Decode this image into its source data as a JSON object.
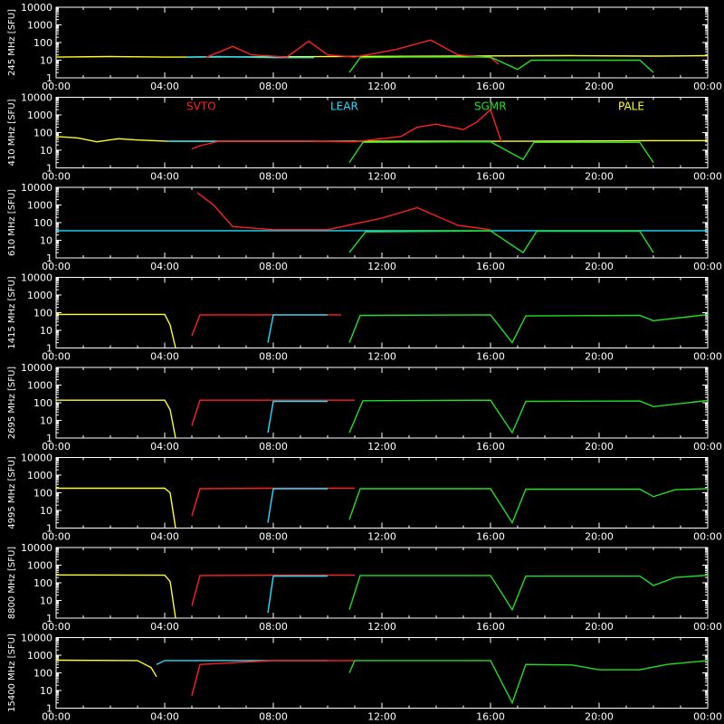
{
  "colors": {
    "SVTO": "#ff2020",
    "LEAR": "#20e0ff",
    "SGMR": "#20e020",
    "PALE": "#ffff20",
    "axis": "#ffffff"
  },
  "chart_data": {
    "type": "line",
    "legend": [
      {
        "name": "SVTO",
        "color": "#ff2020"
      },
      {
        "name": "LEAR",
        "color": "#20e0ff"
      },
      {
        "name": "SGMR",
        "color": "#20e020"
      },
      {
        "name": "PALE",
        "color": "#ffff20"
      }
    ],
    "x_ticks": [
      "00:00",
      "04:00",
      "08:00",
      "12:00",
      "16:00",
      "20:00",
      "00:00"
    ],
    "xlim": [
      0,
      24
    ],
    "y_ticks": [
      "10000",
      "1000",
      "100",
      "10",
      "1"
    ],
    "ylim": [
      1,
      10000
    ],
    "y_scale": "log",
    "panels": [
      {
        "ylabel": "245 MHz [SFU]",
        "series": [
          {
            "station": "PALE",
            "points": [
              [
                0,
                15
              ],
              [
                2,
                16
              ],
              [
                4,
                15
              ],
              [
                4.8,
                15
              ],
              [
                19,
                18
              ],
              [
                22,
                17
              ],
              [
                24,
                18
              ]
            ]
          },
          {
            "station": "LEAR",
            "points": [
              [
                4.8,
                15
              ],
              [
                6,
                16
              ],
              [
                8,
                14
              ],
              [
                9.5,
                14
              ]
            ]
          },
          {
            "station": "SVTO",
            "points": [
              [
                5.5,
                14
              ],
              [
                6.5,
                60
              ],
              [
                7.2,
                20
              ],
              [
                8.5,
                15
              ],
              [
                9.3,
                120
              ],
              [
                10,
                20
              ],
              [
                11,
                15
              ],
              [
                12.5,
                40
              ],
              [
                13.8,
                140
              ],
              [
                14.8,
                20
              ],
              [
                16,
                14
              ],
              [
                16.3,
                6
              ]
            ]
          },
          {
            "station": "SGMR",
            "points": [
              [
                10.8,
                2
              ],
              [
                11.2,
                14
              ],
              [
                13,
                15
              ],
              [
                16,
                15
              ],
              [
                17,
                3
              ],
              [
                17.5,
                10
              ],
              [
                21.5,
                10
              ],
              [
                22,
                2
              ]
            ]
          }
        ]
      },
      {
        "ylabel": "410 MHz [SFU]",
        "series": [
          {
            "station": "PALE",
            "points": [
              [
                0,
                60
              ],
              [
                0.8,
                50
              ],
              [
                1.5,
                30
              ],
              [
                2.3,
                45
              ],
              [
                3,
                38
              ],
              [
                4.1,
                32
              ],
              [
                17,
                32
              ],
              [
                22,
                35
              ],
              [
                24,
                35
              ]
            ]
          },
          {
            "station": "LEAR",
            "points": [
              [
                4.1,
                32
              ],
              [
                6,
                32
              ],
              [
                8,
                32
              ],
              [
                9.5,
                32
              ]
            ]
          },
          {
            "station": "SVTO",
            "points": [
              [
                5,
                12
              ],
              [
                5.3,
                18
              ],
              [
                6,
                32
              ],
              [
                9.5,
                32
              ],
              [
                11,
                30
              ],
              [
                12.7,
                60
              ],
              [
                13.3,
                200
              ],
              [
                14,
                300
              ],
              [
                15,
                150
              ],
              [
                15.5,
                400
              ],
              [
                16,
                2000
              ],
              [
                16.4,
                30
              ]
            ]
          },
          {
            "station": "SGMR",
            "points": [
              [
                10.8,
                2
              ],
              [
                11.3,
                28
              ],
              [
                16,
                30
              ],
              [
                17.2,
                3
              ],
              [
                17.6,
                28
              ],
              [
                21.5,
                28
              ],
              [
                22,
                2
              ]
            ]
          }
        ]
      },
      {
        "ylabel": "610 MHz [SFU]",
        "series": [
          {
            "station": "LEAR",
            "points": [
              [
                0,
                35
              ],
              [
                2,
                35
              ],
              [
                4,
                35
              ],
              [
                8,
                35
              ],
              [
                10,
                35
              ],
              [
                22.5,
                35
              ],
              [
                24,
                35
              ]
            ]
          },
          {
            "station": "SVTO",
            "points": [
              [
                5.2,
                5000
              ],
              [
                5.8,
                1000
              ],
              [
                6.5,
                60
              ],
              [
                8,
                40
              ],
              [
                10,
                40
              ],
              [
                12,
                180
              ],
              [
                13.3,
                700
              ],
              [
                14.8,
                70
              ],
              [
                16,
                40
              ]
            ]
          },
          {
            "station": "SGMR",
            "points": [
              [
                10.8,
                2
              ],
              [
                11.4,
                30
              ],
              [
                16,
                34
              ],
              [
                17.2,
                2
              ],
              [
                17.7,
                32
              ],
              [
                21.5,
                32
              ],
              [
                22,
                2
              ]
            ]
          }
        ]
      },
      {
        "ylabel": "1415 MHz [SFU]",
        "series": [
          {
            "station": "PALE",
            "points": [
              [
                0,
                80
              ],
              [
                4,
                80
              ],
              [
                4.2,
                20
              ],
              [
                4.4,
                1
              ]
            ]
          },
          {
            "station": "SVTO",
            "points": [
              [
                5,
                5
              ],
              [
                5.3,
                75
              ],
              [
                8,
                75
              ],
              [
                10.5,
                75
              ]
            ]
          },
          {
            "station": "LEAR",
            "points": [
              [
                7.8,
                2
              ],
              [
                8,
                75
              ],
              [
                10,
                75
              ]
            ]
          },
          {
            "station": "SGMR",
            "points": [
              [
                10.8,
                2
              ],
              [
                11.2,
                70
              ],
              [
                16,
                75
              ],
              [
                16.8,
                2
              ],
              [
                17.3,
                65
              ],
              [
                21.5,
                70
              ],
              [
                22,
                35
              ],
              [
                24,
                78
              ]
            ]
          }
        ]
      },
      {
        "ylabel": "2695 MHz [SFU]",
        "series": [
          {
            "station": "PALE",
            "points": [
              [
                0,
                140
              ],
              [
                4,
                140
              ],
              [
                4.2,
                40
              ],
              [
                4.4,
                1
              ]
            ]
          },
          {
            "station": "SVTO",
            "points": [
              [
                5,
                5
              ],
              [
                5.3,
                140
              ],
              [
                8,
                140
              ],
              [
                11,
                140
              ]
            ]
          },
          {
            "station": "LEAR",
            "points": [
              [
                7.8,
                2
              ],
              [
                8,
                120
              ],
              [
                10,
                120
              ]
            ]
          },
          {
            "station": "SGMR",
            "points": [
              [
                10.8,
                2
              ],
              [
                11.3,
                130
              ],
              [
                16,
                140
              ],
              [
                16.8,
                2
              ],
              [
                17.3,
                120
              ],
              [
                21.5,
                125
              ],
              [
                22,
                60
              ],
              [
                24,
                135
              ]
            ]
          }
        ]
      },
      {
        "ylabel": "4995 MHz [SFU]",
        "series": [
          {
            "station": "PALE",
            "points": [
              [
                0,
                180
              ],
              [
                4,
                180
              ],
              [
                4.2,
                100
              ],
              [
                4.4,
                1
              ]
            ]
          },
          {
            "station": "SVTO",
            "points": [
              [
                5,
                5
              ],
              [
                5.3,
                170
              ],
              [
                8,
                180
              ],
              [
                11,
                180
              ]
            ]
          },
          {
            "station": "LEAR",
            "points": [
              [
                7.8,
                2
              ],
              [
                8,
                170
              ],
              [
                10,
                170
              ]
            ]
          },
          {
            "station": "SGMR",
            "points": [
              [
                10.8,
                3
              ],
              [
                11.2,
                170
              ],
              [
                16,
                170
              ],
              [
                16.8,
                2
              ],
              [
                17.3,
                160
              ],
              [
                21.5,
                160
              ],
              [
                22,
                60
              ],
              [
                22.8,
                150
              ],
              [
                24,
                170
              ]
            ]
          }
        ]
      },
      {
        "ylabel": "8800 MHz [SFU]",
        "series": [
          {
            "station": "PALE",
            "points": [
              [
                0,
                280
              ],
              [
                4,
                270
              ],
              [
                4.2,
                120
              ],
              [
                4.4,
                1
              ]
            ]
          },
          {
            "station": "SVTO",
            "points": [
              [
                5,
                5
              ],
              [
                5.3,
                260
              ],
              [
                8,
                270
              ],
              [
                11,
                270
              ]
            ]
          },
          {
            "station": "LEAR",
            "points": [
              [
                7.8,
                2
              ],
              [
                8,
                240
              ],
              [
                10,
                240
              ]
            ]
          },
          {
            "station": "SGMR",
            "points": [
              [
                10.8,
                3
              ],
              [
                11.2,
                260
              ],
              [
                16,
                260
              ],
              [
                16.8,
                3
              ],
              [
                17.3,
                240
              ],
              [
                21.5,
                240
              ],
              [
                22,
                70
              ],
              [
                22.8,
                200
              ],
              [
                24,
                270
              ]
            ]
          }
        ]
      },
      {
        "ylabel": "15400 MHz [SFU]",
        "series": [
          {
            "station": "PALE",
            "points": [
              [
                0,
                520
              ],
              [
                3,
                500
              ],
              [
                3.5,
                200
              ],
              [
                3.7,
                60
              ]
            ]
          },
          {
            "station": "LEAR",
            "points": [
              [
                3.7,
                300
              ],
              [
                4,
                500
              ],
              [
                8,
                500
              ],
              [
                10,
                500
              ]
            ]
          },
          {
            "station": "SVTO",
            "points": [
              [
                5,
                5
              ],
              [
                5.3,
                300
              ],
              [
                8,
                500
              ],
              [
                11,
                500
              ]
            ]
          },
          {
            "station": "SGMR",
            "points": [
              [
                10.8,
                100
              ],
              [
                11,
                500
              ],
              [
                16,
                500
              ],
              [
                16.8,
                2
              ],
              [
                17.3,
                300
              ],
              [
                19,
                280
              ],
              [
                20,
                150
              ],
              [
                21.5,
                150
              ],
              [
                22.5,
                300
              ],
              [
                24,
                500
              ]
            ]
          }
        ]
      }
    ]
  }
}
